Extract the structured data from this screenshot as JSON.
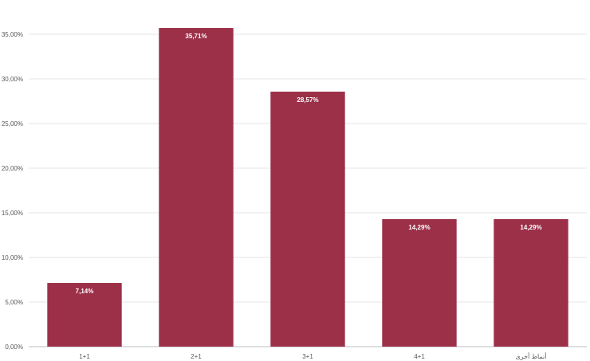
{
  "chart_data": {
    "type": "bar",
    "title": "",
    "xlabel": "",
    "ylabel": "",
    "categories": [
      "1+1",
      "2+1",
      "3+1",
      "4+1",
      "أنماط أخرى"
    ],
    "values": [
      7.14,
      35.71,
      28.57,
      14.29,
      14.29
    ],
    "data_labels": [
      "7,14%",
      "35,71%",
      "28,57%",
      "14,29%",
      "14,29%"
    ],
    "ylim": [
      0,
      35
    ],
    "yticks": [
      0,
      5,
      10,
      15,
      20,
      25,
      30,
      35
    ],
    "ytick_labels": [
      "0,00%",
      "5,00%",
      "10,00%",
      "15,00%",
      "20,00%",
      "25,00%",
      "30,00%",
      "35,00%"
    ],
    "grid": true,
    "legend": "none",
    "bar_color": "#9b3048"
  }
}
